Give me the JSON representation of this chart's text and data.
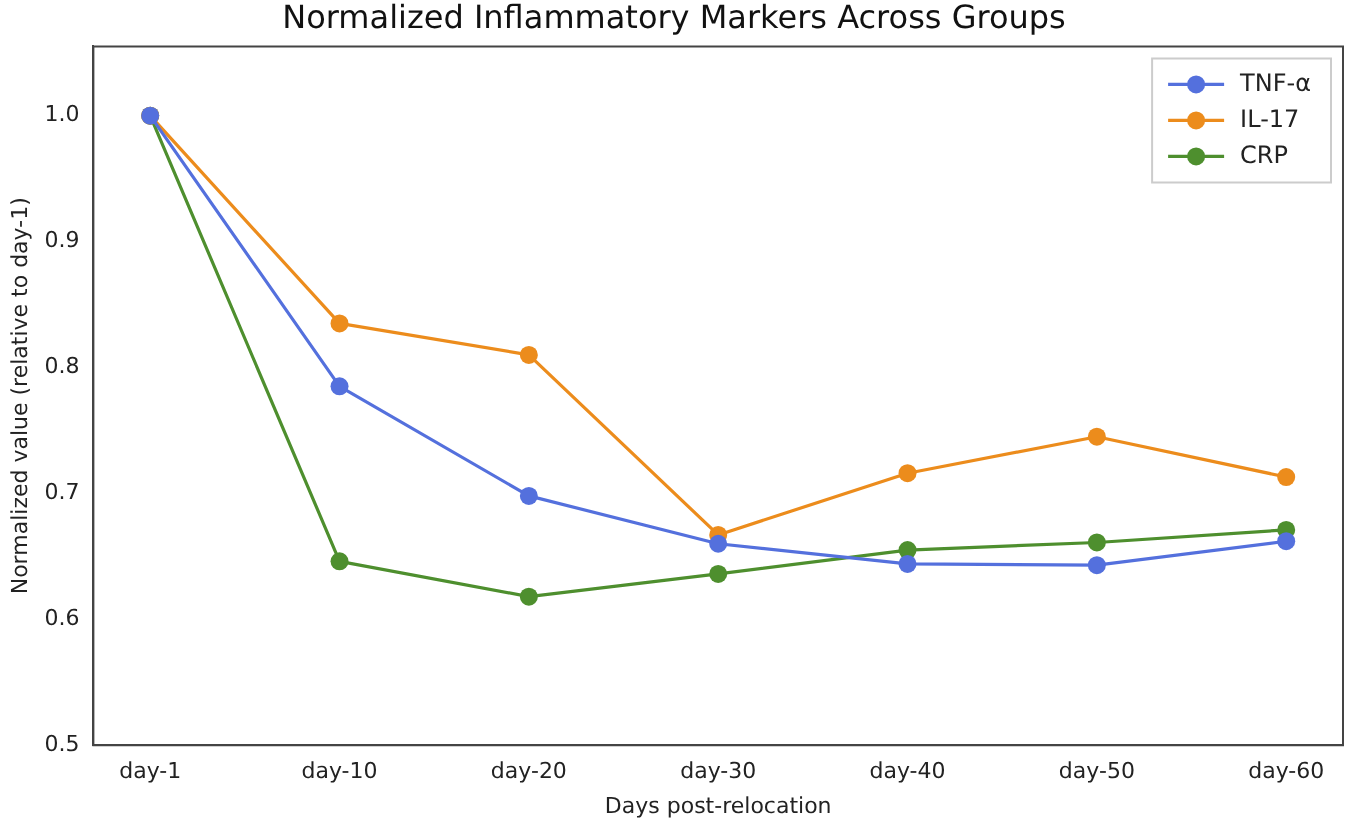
{
  "chart_data": {
    "type": "line",
    "title": "Normalized Inflammatory Markers Across Groups",
    "xlabel": "Days post-relocation",
    "ylabel": "Normalized value (relative to day-1)",
    "categories": [
      "day-1",
      "day-10",
      "day-20",
      "day-30",
      "day-40",
      "day-50",
      "day-60"
    ],
    "series": [
      {
        "name": "TNF-α",
        "color": "#5470dd",
        "values": [
          1.0,
          0.785,
          0.698,
          0.66,
          0.644,
          0.643,
          0.662
        ]
      },
      {
        "name": "IL-17",
        "color": "#ec8c1c",
        "values": [
          1.0,
          0.835,
          0.81,
          0.667,
          0.716,
          0.745,
          0.713
        ]
      },
      {
        "name": "CRP",
        "color": "#4e8f2e",
        "values": [
          1.0,
          0.646,
          0.618,
          0.636,
          0.655,
          0.661,
          0.671
        ]
      }
    ],
    "ylim": [
      0.5,
      1.055
    ],
    "yticks": [
      {
        "value": 0.5,
        "label": "0.5"
      },
      {
        "value": 0.6,
        "label": "0.6"
      },
      {
        "value": 0.7,
        "label": "0.7"
      },
      {
        "value": 0.8,
        "label": "0.8"
      },
      {
        "value": 0.9,
        "label": "0.9"
      },
      {
        "value": 1,
        "label": "1.0"
      }
    ],
    "grid": false,
    "legend": "top right",
    "marker": "circle",
    "line_style": "solid"
  }
}
